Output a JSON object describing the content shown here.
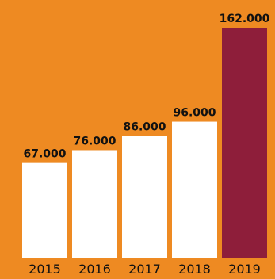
{
  "colors": {
    "background": "#EE8A22",
    "bar": "#FFFFFF",
    "highlight_bar": "#8E1E3A",
    "text": "#111111"
  },
  "chart_data": {
    "type": "bar",
    "categories": [
      "2015",
      "2016",
      "2017",
      "2018",
      "2019"
    ],
    "values": [
      67000,
      76000,
      86000,
      96000,
      162000
    ],
    "value_labels": [
      "67.000",
      "76.000",
      "86.000",
      "96.000",
      "162.000"
    ],
    "highlight_index": 4,
    "ylim": [
      0,
      162000
    ],
    "grid": false,
    "legend": "none"
  }
}
